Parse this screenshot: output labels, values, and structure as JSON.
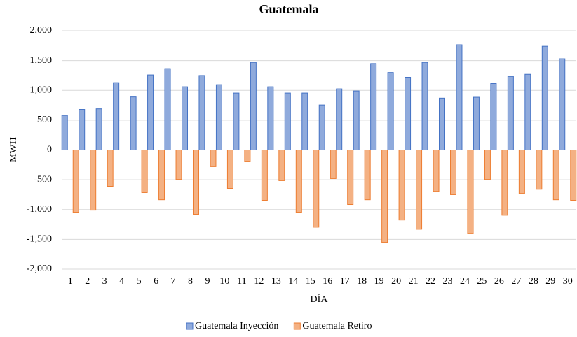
{
  "chart_data": {
    "type": "bar",
    "title": "Guatemala",
    "x_label": "DÍA",
    "y_label": "MWH",
    "categories": [
      "1",
      "2",
      "3",
      "4",
      "5",
      "6",
      "7",
      "8",
      "9",
      "10",
      "11",
      "12",
      "13",
      "14",
      "15",
      "16",
      "17",
      "18",
      "19",
      "20",
      "21",
      "22",
      "23",
      "24",
      "25",
      "26",
      "27",
      "28",
      "29",
      "30"
    ],
    "series": [
      {
        "name": "Guatemala Inyección",
        "color": "#8faadc",
        "stroke": "#4472c4",
        "values": [
          580,
          680,
          690,
          1130,
          890,
          1260,
          1365,
          1060,
          1250,
          1095,
          955,
          1470,
          1060,
          955,
          955,
          755,
          1025,
          990,
          1450,
          1300,
          1220,
          1470,
          870,
          1765,
          885,
          1115,
          1235,
          1270,
          1740,
          1530
        ]
      },
      {
        "name": "Guatemala Retiro",
        "color": "#f4b183",
        "stroke": "#ed7d31",
        "values": [
          -1045,
          -1010,
          -610,
          0,
          -715,
          -835,
          -495,
          -1080,
          -280,
          -645,
          -190,
          -845,
          -515,
          -1045,
          -1295,
          -480,
          -915,
          -835,
          -1550,
          -1175,
          -1330,
          -695,
          -750,
          -1400,
          -495,
          -1095,
          -730,
          -660,
          -835,
          -845
        ]
      }
    ],
    "ylim": [
      -2000,
      2000
    ],
    "yticks": [
      {
        "value": -2000,
        "label": "-2,000"
      },
      {
        "value": -1500,
        "label": "-1,500"
      },
      {
        "value": -1000,
        "label": "-1,000"
      },
      -500,
      0,
      500,
      {
        "value": 1000,
        "label": "1,000"
      },
      {
        "value": 1500,
        "label": "1,500"
      },
      {
        "value": 2000,
        "label": "2,000"
      }
    ],
    "grid": true,
    "legend": "bottom"
  }
}
